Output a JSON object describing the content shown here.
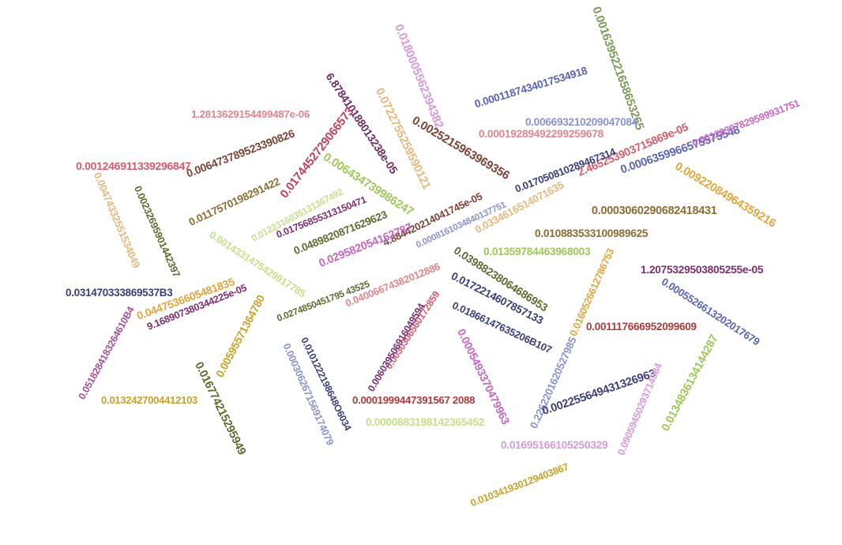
{
  "numbers": [
    {
      "text": "0.0180005562394382",
      "color": "#d59ad9"
    },
    {
      "text": "0.0016395221658653265",
      "color": "#7d9a59"
    },
    {
      "text": "0.0001187434017534918",
      "color": "#5a63b8"
    },
    {
      "text": "1.2813629154499487e-06",
      "color": "#e2868e"
    },
    {
      "text": "6.878410188013238e-05",
      "color": "#6b2d5f"
    },
    {
      "text": "0.0722755259590121",
      "color": "#e6b97c"
    },
    {
      "text": "0.006693210209047084",
      "color": "#8a92d2"
    },
    {
      "text": "0.00019289492299259678",
      "color": "#e2868e"
    },
    {
      "text": "0.006473789523390826",
      "color": "#7a4235"
    },
    {
      "text": "0.0025215963969356",
      "color": "#7a4235"
    },
    {
      "text": "0.0174452729066573",
      "color": "#c1405a"
    },
    {
      "text": "2.465253903715869e-05",
      "color": "#d95a6b"
    },
    {
      "text": "0.0006359966575575548",
      "color": "#5a63b8"
    },
    {
      "text": "0.00128397829599931751",
      "color": "#c665c2"
    },
    {
      "text": "0.001246911339296847",
      "color": "#d95a6b"
    },
    {
      "text": "0.006434739986247",
      "color": "#a0c75a"
    },
    {
      "text": "0.017050810289467314",
      "color": "#393e7a"
    },
    {
      "text": "0.0117570198291422",
      "color": "#8c6d31"
    },
    {
      "text": "0.00922084964359216",
      "color": "#e3a63a"
    },
    {
      "text": "0.00474332551534049",
      "color": "#e6b97c"
    },
    {
      "text": "0.00232695901442397",
      "color": "#5c6b2e"
    },
    {
      "text": "0.0122316035131367492",
      "color": "#c7df8a"
    },
    {
      "text": "0.01756855313150471",
      "color": "#7d2e70"
    },
    {
      "text": "4.884420214041745e-05",
      "color": "#7a4235"
    },
    {
      "text": "0.0334616514071635",
      "color": "#e6b97c"
    },
    {
      "text": "0.0003060290682418431",
      "color": "#8c6d31"
    },
    {
      "text": "0.0489820871629623",
      "color": "#5c6b2e"
    },
    {
      "text": "0.0008161034840137751",
      "color": "#8a92d2"
    },
    {
      "text": "0.010883533100989625",
      "color": "#8c6d31"
    },
    {
      "text": "0.0014331475429917785",
      "color": "#c7df8a"
    },
    {
      "text": "0.029582054162787",
      "color": "#c665c2"
    },
    {
      "text": "0.01359784463968003",
      "color": "#a0c75a"
    },
    {
      "text": "0.03988238064686953",
      "color": "#5c6b2e"
    },
    {
      "text": "0.0160526612786753",
      "color": "#e3a63a"
    },
    {
      "text": "1.2075329503805255e-05",
      "color": "#7d2e70"
    },
    {
      "text": "0.031470333869537B3",
      "color": "#393e7a"
    },
    {
      "text": "0.0447536605481835",
      "color": "#e3a63a"
    },
    {
      "text": "9.168907380344225e-05",
      "color": "#7d2e70"
    },
    {
      "text": "0.0274850451795 43525",
      "color": "#5c6b2e"
    },
    {
      "text": "0.04006674382012886",
      "color": "#e2868e"
    },
    {
      "text": "0.0172214607857133",
      "color": "#393e7a"
    },
    {
      "text": "0.0005526613202017679",
      "color": "#5a63b8"
    },
    {
      "text": "0.0518284183264610B4",
      "color": "#a45195"
    },
    {
      "text": "0.00595571364780",
      "color": "#c9a227"
    },
    {
      "text": "0.0030306560172859",
      "color": "#d95a6b"
    },
    {
      "text": "0.006039506916049594",
      "color": "#7d2e70"
    },
    {
      "text": "0.01866147635206B107",
      "color": "#393e7a"
    },
    {
      "text": "0.001117666952099609",
      "color": "#b03a3a"
    },
    {
      "text": "0.0003062671569174079",
      "color": "#8a92d2"
    },
    {
      "text": "0.0101222198648O6034",
      "color": "#393e7a"
    },
    {
      "text": "0.0005493370479963",
      "color": "#c665c2"
    },
    {
      "text": "0.2262201620527985",
      "color": "#8a92d2"
    },
    {
      "text": "0.016774215295949",
      "color": "#5c6b2e"
    },
    {
      "text": "0.0132427004412103",
      "color": "#c9a227"
    },
    {
      "text": "0.0001999447391567 2088",
      "color": "#b03a3a"
    },
    {
      "text": "0.002255649431326963",
      "color": "#393e7a"
    },
    {
      "text": "0.0000883198142365452",
      "color": "#c7df8a"
    },
    {
      "text": "0.09059450293714984",
      "color": "#d59ad9"
    },
    {
      "text": "0.0134836134144287",
      "color": "#a0c75a"
    },
    {
      "text": "0.01695166105250329",
      "color": "#d59ad9"
    },
    {
      "text": "0.010341930129403867",
      "color": "#c9a227"
    }
  ]
}
